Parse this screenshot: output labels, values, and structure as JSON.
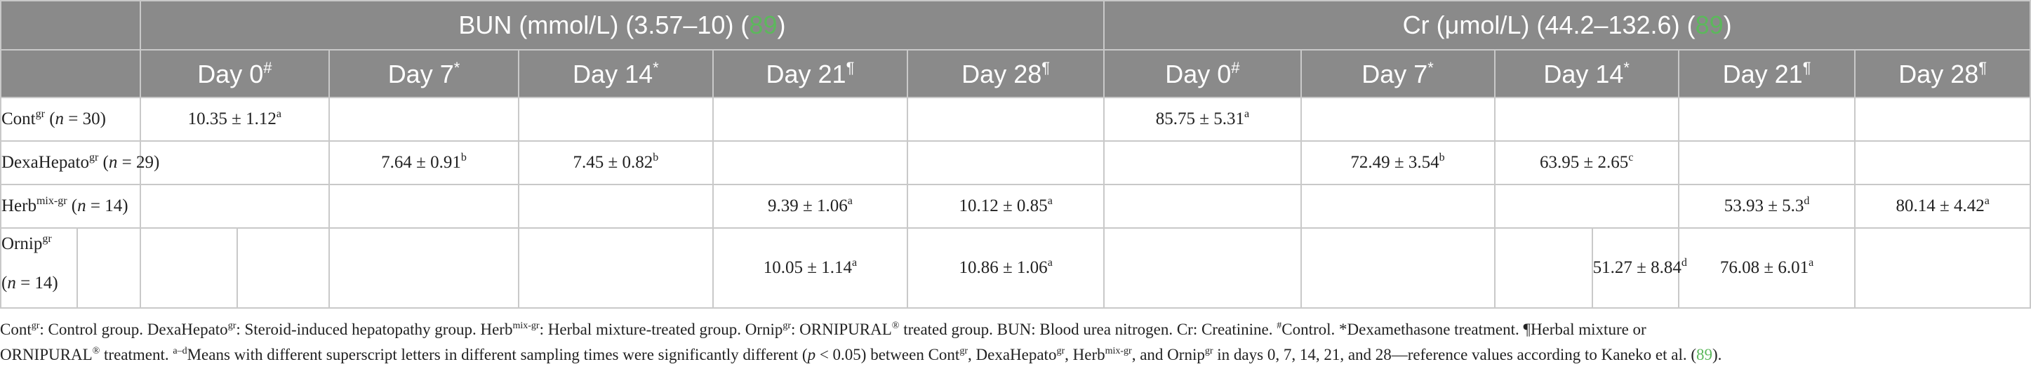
{
  "header": {
    "bun_title": "BUN (mmol/L) (3.57–10) (",
    "bun_ref": "89",
    "bun_close": ")",
    "cr_title": "Cr (μmol/L) (44.2–132.6) (",
    "cr_ref": "89",
    "cr_close": ")",
    "days": [
      {
        "label": "Day 0",
        "mark": "#"
      },
      {
        "label": "Day 7",
        "mark": "*"
      },
      {
        "label": "Day 14",
        "mark": "*"
      },
      {
        "label": "Day 21",
        "mark": "¶"
      },
      {
        "label": "Day 28",
        "mark": "¶"
      }
    ]
  },
  "rows": [
    {
      "group": "Cont",
      "group_sup": "gr",
      "n_pre": " (",
      "n_var": "n",
      "n_post": " = 30)",
      "bun": [
        {
          "v": "10.35 ± 1.12",
          "s": "a"
        },
        {
          "v": "",
          "s": ""
        },
        {
          "v": "",
          "s": ""
        },
        {
          "v": "",
          "s": ""
        },
        {
          "v": "",
          "s": ""
        }
      ],
      "cr": [
        {
          "v": "85.75 ± 5.31",
          "s": "a"
        },
        {
          "v": "",
          "s": ""
        },
        {
          "v": "",
          "s": ""
        },
        {
          "v": "",
          "s": ""
        },
        {
          "v": "",
          "s": ""
        }
      ]
    },
    {
      "group": "DexaHepato",
      "group_sup": "gr",
      "n_pre": " (",
      "n_var": "n",
      "n_post": " = 29)",
      "bun": [
        {
          "v": "",
          "s": ""
        },
        {
          "v": "7.64 ± 0.91",
          "s": "b"
        },
        {
          "v": "7.45 ± 0.82",
          "s": "b"
        },
        {
          "v": "",
          "s": ""
        },
        {
          "v": "",
          "s": ""
        }
      ],
      "cr": [
        {
          "v": "",
          "s": ""
        },
        {
          "v": "72.49 ± 3.54",
          "s": "b"
        },
        {
          "v": "63.95 ± 2.65",
          "s": "c"
        },
        {
          "v": "",
          "s": ""
        },
        {
          "v": "",
          "s": ""
        }
      ]
    },
    {
      "group": "Herb",
      "group_sup": "mix-gr",
      "n_pre": " (",
      "n_var": "n",
      "n_post": " = 14)",
      "bun": [
        {
          "v": "",
          "s": ""
        },
        {
          "v": "",
          "s": ""
        },
        {
          "v": "",
          "s": ""
        },
        {
          "v": "9.39 ± 1.06",
          "s": "a"
        },
        {
          "v": "10.12 ± 0.85",
          "s": "a"
        }
      ],
      "cr": [
        {
          "v": "",
          "s": ""
        },
        {
          "v": "",
          "s": ""
        },
        {
          "v": "",
          "s": ""
        },
        {
          "v": "53.93 ± 5.3",
          "s": "d"
        },
        {
          "v": "80.14 ± 4.42",
          "s": "a"
        }
      ]
    },
    {
      "group": "Ornip",
      "group_sup": "gr",
      "n_pre": "(",
      "n_var": "n",
      "n_post": " = 14)",
      "bun": [
        {
          "v": "",
          "s": ""
        },
        {
          "v": "",
          "s": ""
        },
        {
          "v": "",
          "s": ""
        },
        {
          "v": "10.05 ± 1.14",
          "s": "a"
        },
        {
          "v": "10.86 ± 1.06",
          "s": "a"
        }
      ],
      "cr": [
        {
          "v": "",
          "s": ""
        },
        {
          "v": "",
          "s": ""
        },
        {
          "v": "51.27 ± 8.84",
          "s": "d"
        },
        {
          "v": "76.08 ± 6.01",
          "s": "a"
        },
        {
          "v": "",
          "s": ""
        }
      ]
    }
  ],
  "footnote": {
    "line1": [
      {
        "t": "Cont"
      },
      {
        "sup": "gr"
      },
      {
        "t": ": Control group. DexaHepato"
      },
      {
        "sup": "gr"
      },
      {
        "t": ": Steroid-induced hepatopathy group. Herb"
      },
      {
        "sup": "mix-gr"
      },
      {
        "t": ": Herbal mixture-treated group. Ornip"
      },
      {
        "sup": "gr"
      },
      {
        "t": ": ORNIPURAL"
      },
      {
        "sup": "®"
      },
      {
        "t": " treated group. BUN: Blood urea nitrogen. Cr: Creatinine. "
      },
      {
        "sup": "#"
      },
      {
        "t": "Control. *Dexamethasone treatment. ¶Herbal mixture or"
      }
    ],
    "line2": [
      {
        "t": "ORNIPURAL"
      },
      {
        "sup": "®"
      },
      {
        "t": " treatment. "
      },
      {
        "sup": "a–d"
      },
      {
        "t": "Means with different superscript letters in different sampling times were significantly different ("
      },
      {
        "i": "p"
      },
      {
        "t": " < 0.05) between Cont"
      },
      {
        "sup": "gr"
      },
      {
        "t": ", DexaHepato"
      },
      {
        "sup": "gr"
      },
      {
        "t": ", Herb"
      },
      {
        "sup": "mix-gr"
      },
      {
        "t": ", and Ornip"
      },
      {
        "sup": "gr"
      },
      {
        "t": " in days 0, 7, 14, 21, and 28—reference values according to Kaneko et al. ("
      },
      {
        "ref": "89"
      },
      {
        "t": ")."
      }
    ]
  }
}
